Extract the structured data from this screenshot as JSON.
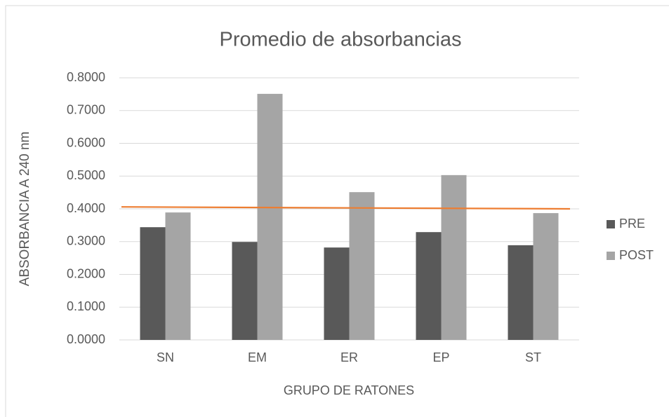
{
  "chart_data": {
    "type": "bar",
    "title": "Promedio de absorbancias",
    "x_label": "GRUPO DE RATONES",
    "y_label": "ABSORBANCIA A 240 nm",
    "categories": [
      "SN",
      "EM",
      "ER",
      "EP",
      "ST"
    ],
    "series": [
      {
        "name": "PRE",
        "color": "#595959",
        "values": [
          0.344,
          0.299,
          0.282,
          0.329,
          0.289
        ]
      },
      {
        "name": "POST",
        "color": "#a5a5a5",
        "values": [
          0.389,
          0.751,
          0.451,
          0.503,
          0.387
        ]
      }
    ],
    "trend_line": {
      "color": "#ed7d31",
      "values": [
        0.406,
        0.4
      ]
    },
    "ylim": [
      0,
      0.8
    ],
    "yticks": [
      {
        "value": 0,
        "label": "0.0000"
      },
      {
        "value": 0.1,
        "label": "0.1000"
      },
      {
        "value": 0.2,
        "label": "0.2000"
      },
      {
        "value": 0.3,
        "label": "0.3000"
      },
      {
        "value": 0.4,
        "label": "0.4000"
      },
      {
        "value": 0.5,
        "label": "0.5000"
      },
      {
        "value": 0.6,
        "label": "0.6000"
      },
      {
        "value": 0.7,
        "label": "0.7000"
      },
      {
        "value": 0.8,
        "label": "0.8000"
      }
    ],
    "grid": true,
    "legend": "right"
  }
}
